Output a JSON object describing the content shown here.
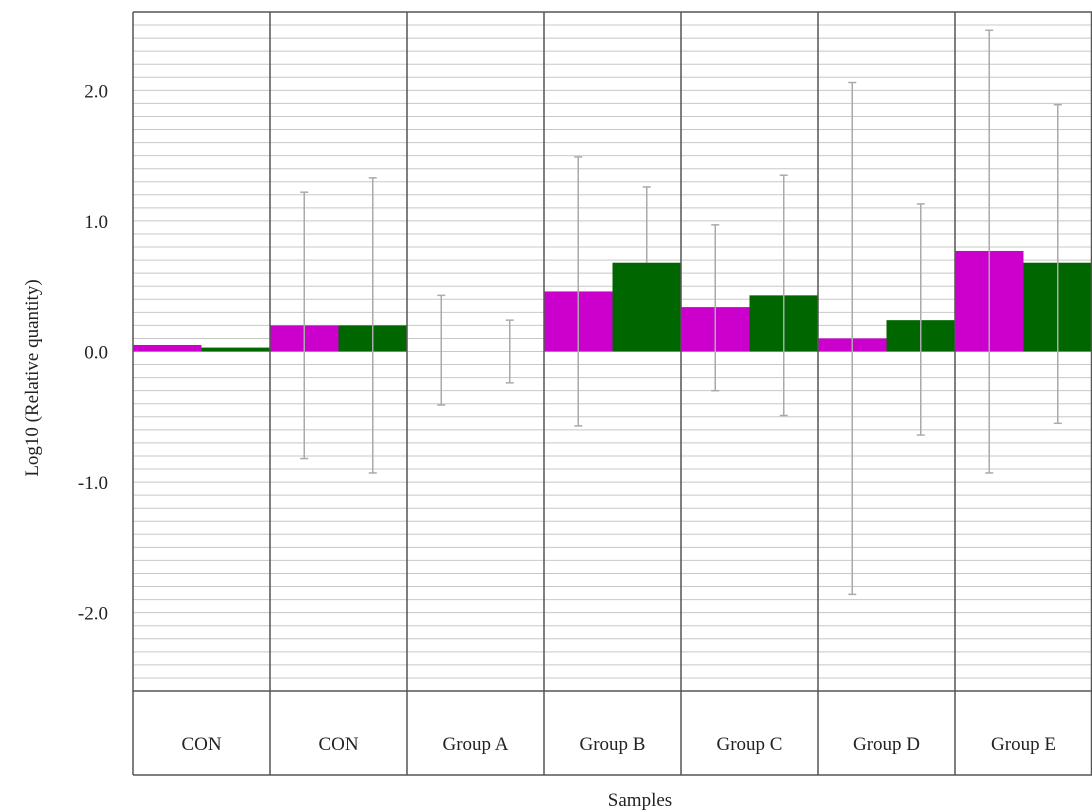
{
  "chart_data": {
    "type": "bar",
    "xlabel": "Samples",
    "ylabel": "Log10 (Relative  quantity)",
    "ylim": [
      -2.6,
      2.6
    ],
    "yticks": [
      -2.0,
      -1.0,
      0.0,
      1.0,
      2.0
    ],
    "ytick_labels": [
      "-2.0",
      "-1.0",
      "0.0",
      "1.0",
      "2.0"
    ],
    "minor_grid_step": 0.1,
    "grid": true,
    "categories": [
      "CON",
      "CON",
      "Group A",
      "Group B",
      "Group C",
      "Group D",
      "Group E"
    ],
    "colors": [
      "#cc00cc",
      "#006600"
    ],
    "error_color": "#aaaaaa",
    "series": [
      {
        "values": [
          0.05,
          0.2,
          0.0,
          0.46,
          0.34,
          0.1,
          0.77
        ],
        "error_low": [
          null,
          -0.82,
          -0.41,
          -0.57,
          -0.3,
          -1.86,
          -0.93
        ],
        "error_high": [
          null,
          1.22,
          0.43,
          1.49,
          0.97,
          2.06,
          2.46
        ]
      },
      {
        "values": [
          0.03,
          0.2,
          0.0,
          0.68,
          0.43,
          0.24,
          0.68
        ],
        "error_low": [
          null,
          -0.93,
          -0.24,
          null,
          -0.49,
          -0.64,
          -0.55
        ],
        "error_high": [
          null,
          1.33,
          0.24,
          1.26,
          1.35,
          1.13,
          1.89
        ]
      }
    ]
  }
}
